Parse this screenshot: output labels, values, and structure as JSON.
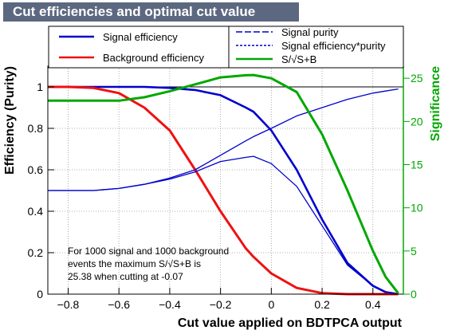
{
  "window": {
    "title": "Cut efficiencies and optimal cut value"
  },
  "chart_data": {
    "type": "line",
    "title": "Cut efficiencies and optimal cut value",
    "xlabel": "Cut value applied on BDTPCA output",
    "ylabel": "Efficiency (Purity)",
    "ylabel_right": "Significance",
    "xlim": [
      -0.88,
      0.52
    ],
    "ylim": [
      0,
      1.1
    ],
    "ylim_right": [
      0,
      26.4
    ],
    "xticks": [
      "−0.8",
      "−0.6",
      "−0.4",
      "−0.2",
      "0",
      "0.2",
      "0.4"
    ],
    "xtick_values": [
      -0.8,
      -0.6,
      -0.4,
      -0.2,
      0,
      0.2,
      0.4
    ],
    "yticks": [
      "0",
      "0.2",
      "0.4",
      "0.6",
      "0.8",
      "1"
    ],
    "ytick_values": [
      0,
      0.2,
      0.4,
      0.6,
      0.8,
      1.0
    ],
    "yticks_right": [
      "0",
      "5",
      "10",
      "15",
      "20",
      "25"
    ],
    "ytick_values_right": [
      0,
      5,
      10,
      15,
      20,
      25
    ],
    "colors": {
      "signal": "#0000cc",
      "background": "#ee1111",
      "significance": "#00a800",
      "right_axis": "#00a800",
      "title_bar": "#5c6880"
    },
    "legend": {
      "placement": "top",
      "entries": [
        {
          "label": "Signal efficiency",
          "color": "#0000cc",
          "style": "solid"
        },
        {
          "label": "Background efficiency",
          "color": "#ee1111",
          "style": "solid"
        },
        {
          "label": "Signal purity",
          "color": "#0000cc",
          "style": "dashed"
        },
        {
          "label": "Signal efficiency*purity",
          "color": "#0000cc",
          "style": "dotted"
        },
        {
          "label": "S/√S+B",
          "color": "#00a800",
          "style": "solid"
        }
      ]
    },
    "annotation": [
      "For 1000 signal and 1000 background",
      "events the maximum S/√S+B is",
      "25.38 when cutting at -0.07"
    ],
    "x": [
      -0.88,
      -0.8,
      -0.7,
      -0.6,
      -0.5,
      -0.4,
      -0.3,
      -0.2,
      -0.1,
      -0.07,
      0,
      0.1,
      0.2,
      0.3,
      0.4,
      0.45,
      0.5
    ],
    "series": [
      {
        "name": "Signal efficiency",
        "axis": "left",
        "color": "#0000cc",
        "values": [
          1.0,
          1.0,
          1.0,
          1.0,
          1.0,
          0.995,
          0.985,
          0.96,
          0.9,
          0.88,
          0.79,
          0.6,
          0.36,
          0.15,
          0.04,
          0.01,
          0.0
        ]
      },
      {
        "name": "Background efficiency",
        "axis": "left",
        "color": "#ee1111",
        "values": [
          1.0,
          1.0,
          0.995,
          0.97,
          0.9,
          0.79,
          0.6,
          0.4,
          0.22,
          0.18,
          0.1,
          0.03,
          0.005,
          0.0,
          0.0,
          0.0,
          0.0
        ]
      },
      {
        "name": "Signal purity",
        "axis": "left",
        "color": "#0000cc",
        "values": [
          0.5,
          0.5,
          0.5,
          0.51,
          0.53,
          0.56,
          0.6,
          0.67,
          0.74,
          0.76,
          0.8,
          0.86,
          0.9,
          0.94,
          0.97,
          0.98,
          0.99
        ]
      },
      {
        "name": "Signal efficiency*purity",
        "axis": "left",
        "color": "#0000cc",
        "values": [
          0.5,
          0.5,
          0.5,
          0.51,
          0.53,
          0.555,
          0.59,
          0.64,
          0.66,
          0.665,
          0.63,
          0.52,
          0.33,
          0.14,
          0.04,
          0.01,
          0.0
        ]
      },
      {
        "name": "S/√S+B",
        "axis": "right",
        "color": "#00a800",
        "values": [
          22.4,
          22.4,
          22.4,
          22.4,
          22.8,
          23.5,
          24.3,
          25.1,
          25.35,
          25.38,
          25.0,
          23.4,
          18.5,
          12.0,
          5.0,
          2.0,
          0.1
        ]
      }
    ]
  }
}
